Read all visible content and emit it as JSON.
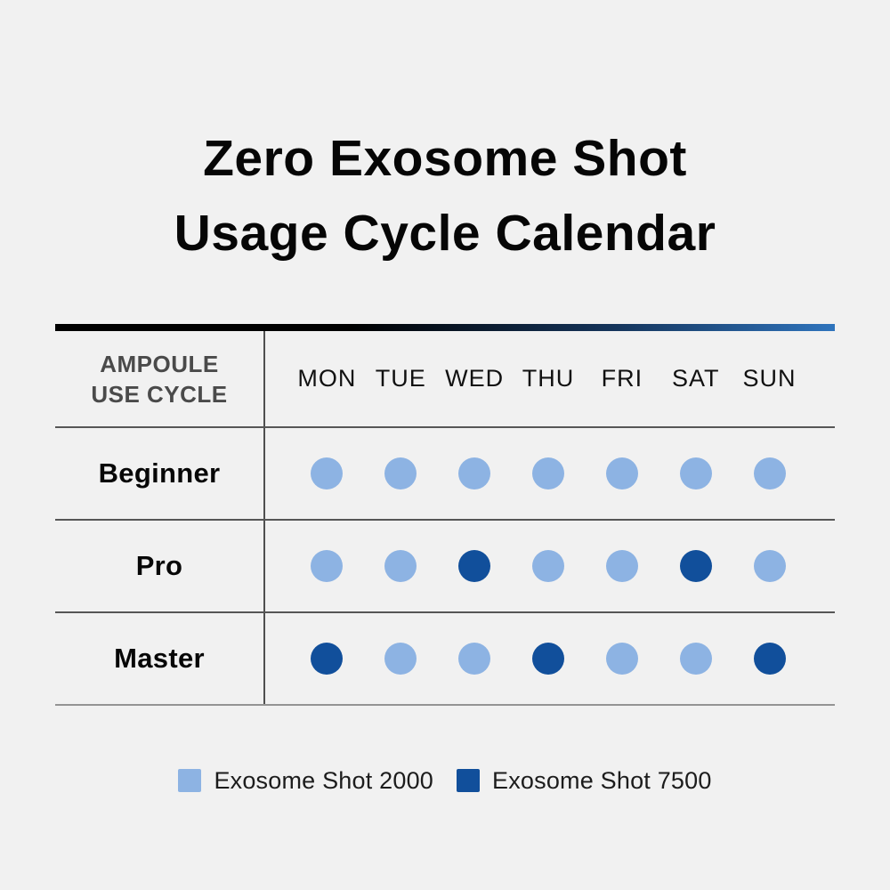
{
  "page": {
    "title_line1": "Zero Exosome Shot",
    "title_line2": "Usage Cycle Calendar"
  },
  "table": {
    "corner_label": "AMPOULE\nUSE CYCLE",
    "days": [
      "MON",
      "TUE",
      "WED",
      "THU",
      "FRI",
      "SAT",
      "SUN"
    ],
    "rows": [
      {
        "label": "Beginner",
        "dots": [
          "2000",
          "2000",
          "2000",
          "2000",
          "2000",
          "2000",
          "2000"
        ]
      },
      {
        "label": "Pro",
        "dots": [
          "2000",
          "2000",
          "7500",
          "2000",
          "2000",
          "7500",
          "2000"
        ]
      },
      {
        "label": "Master",
        "dots": [
          "7500",
          "2000",
          "2000",
          "7500",
          "2000",
          "2000",
          "7500"
        ]
      }
    ]
  },
  "legend": {
    "items": [
      {
        "key": "2000",
        "label": "Exosome Shot 2000",
        "color": "#8db3e3"
      },
      {
        "key": "7500",
        "label": "Exosome Shot 7500",
        "color": "#114f9b"
      }
    ]
  },
  "colors": {
    "shot2000": "#8db3e3",
    "shot7500": "#114f9b",
    "top_bar_start": "#000000",
    "top_bar_end": "#2f74bd",
    "background": "#f1f1f1"
  },
  "chart_data": {
    "type": "table",
    "title": "Zero Exosome Shot Usage Cycle Calendar",
    "row_header": "AMPOULE USE CYCLE",
    "columns": [
      "MON",
      "TUE",
      "WED",
      "THU",
      "FRI",
      "SAT",
      "SUN"
    ],
    "rows": [
      {
        "name": "Beginner",
        "values": [
          "Exosome Shot 2000",
          "Exosome Shot 2000",
          "Exosome Shot 2000",
          "Exosome Shot 2000",
          "Exosome Shot 2000",
          "Exosome Shot 2000",
          "Exosome Shot 2000"
        ]
      },
      {
        "name": "Pro",
        "values": [
          "Exosome Shot 2000",
          "Exosome Shot 2000",
          "Exosome Shot 7500",
          "Exosome Shot 2000",
          "Exosome Shot 2000",
          "Exosome Shot 7500",
          "Exosome Shot 2000"
        ]
      },
      {
        "name": "Master",
        "values": [
          "Exosome Shot 7500",
          "Exosome Shot 2000",
          "Exosome Shot 2000",
          "Exosome Shot 7500",
          "Exosome Shot 2000",
          "Exosome Shot 2000",
          "Exosome Shot 7500"
        ]
      }
    ],
    "legend": [
      "Exosome Shot 2000",
      "Exosome Shot 7500"
    ],
    "legend_position": "bottom"
  }
}
